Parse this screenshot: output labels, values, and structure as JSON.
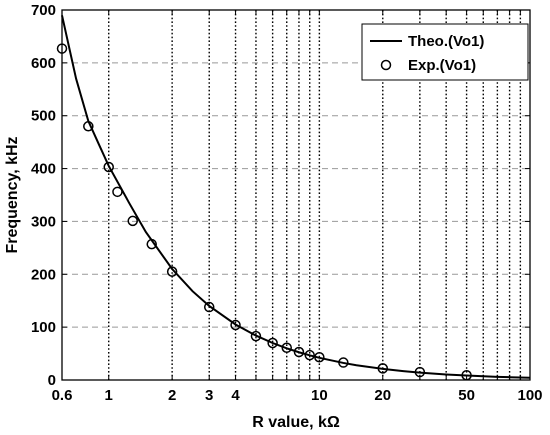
{
  "chart_data": {
    "type": "line",
    "xlabel": "R value, kΩ",
    "ylabel": "Frequency, kHz",
    "xscale": "log",
    "xlim": [
      0.6,
      100
    ],
    "ylim": [
      0,
      700
    ],
    "xticks": [
      0.6,
      1,
      2,
      3,
      4,
      5,
      6,
      7,
      8,
      9,
      10,
      20,
      30,
      40,
      50,
      60,
      70,
      80,
      90,
      100
    ],
    "xtick_labels": [
      "0.6",
      "1",
      "2",
      "3",
      "4",
      "",
      "",
      "",
      "",
      "",
      "10",
      "20",
      "",
      "",
      "50",
      "",
      "",
      "",
      "",
      "100"
    ],
    "yticks": [
      0,
      100,
      200,
      300,
      400,
      500,
      600,
      700
    ],
    "ytick_labels": [
      "0",
      "100",
      "200",
      "300",
      "400",
      "500",
      "600",
      "700"
    ],
    "grid": {
      "x": "dotted-vertical",
      "y": "dashed-horizontal"
    },
    "legend_position": "top-right",
    "series": [
      {
        "name": "Theo.(Vo1)",
        "style": "solid-line",
        "color": "#000000",
        "x": [
          0.6,
          0.7,
          0.8,
          0.9,
          1,
          1.25,
          1.5,
          2,
          2.5,
          3,
          4,
          5,
          6,
          7,
          8,
          9,
          10,
          13,
          15,
          20,
          25,
          30,
          40,
          50,
          60,
          70,
          80,
          100
        ],
        "y": [
          690,
          570,
          490,
          445,
          405,
          335,
          280,
          210,
          168,
          140,
          105,
          84,
          70,
          60,
          52.5,
          46.7,
          42,
          32.3,
          28,
          21,
          16.8,
          14,
          10.5,
          8.4,
          7,
          6,
          5.3,
          4.2
        ]
      },
      {
        "name": "Exp.(Vo1)",
        "style": "open-circle-marker",
        "color": "#000000",
        "x": [
          0.6,
          0.8,
          1,
          1.1,
          1.3,
          1.6,
          2,
          3,
          4,
          5,
          6,
          7,
          8,
          9,
          10,
          13,
          20,
          30,
          50
        ],
        "y": [
          627,
          480,
          403,
          356,
          301,
          257,
          205,
          138,
          104,
          83,
          70,
          61,
          53,
          47,
          43,
          33,
          22,
          15,
          9
        ]
      }
    ]
  }
}
